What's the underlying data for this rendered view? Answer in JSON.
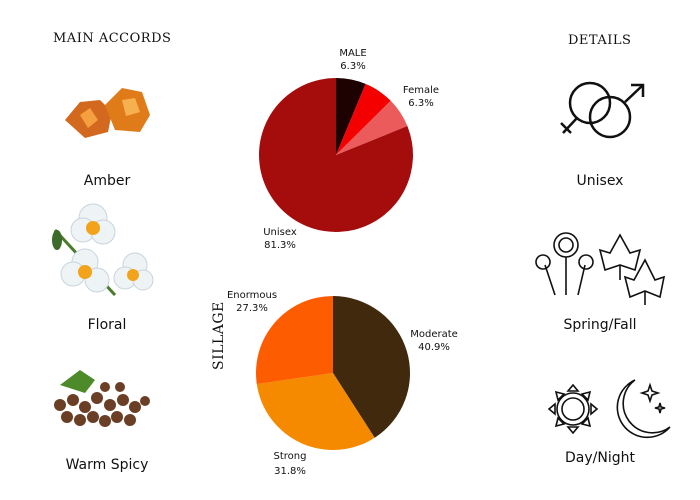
{
  "left": {
    "heading": "MAIN ACCORDS",
    "accords": [
      {
        "label": "Amber",
        "icon": "amber-image"
      },
      {
        "label": "Floral",
        "icon": "narcissus-flower-image"
      },
      {
        "label": "Warm Spicy",
        "icon": "allspice-image"
      }
    ]
  },
  "right": {
    "heading": "DETAILS",
    "items": [
      {
        "label": "Unisex",
        "icon": "gender-symbols-icon"
      },
      {
        "label": "Spring/Fall",
        "icon": "flowers-leaves-icon"
      },
      {
        "label": "Day/Night",
        "icon": "sun-moon-icon"
      }
    ]
  },
  "chart_data": [
    {
      "type": "pie",
      "start": "top",
      "direction": "clockwise",
      "slices": [
        {
          "label": "MALE",
          "value": 6.3,
          "value_label": "6.3%",
          "color": "#1e0202"
        },
        {
          "label": "",
          "value": 6.3,
          "value_label": "",
          "color": "#f40000"
        },
        {
          "label": "Female",
          "value": 6.3,
          "value_label": "6.3%",
          "color": "#ec5b5b"
        },
        {
          "label": "Unisex",
          "value": 81.3,
          "value_label": "81.3%",
          "color": "#a50c0c"
        }
      ]
    },
    {
      "type": "pie",
      "title": "SILLAGE",
      "start": "top",
      "direction": "clockwise",
      "slices": [
        {
          "label": "Moderate",
          "value": 40.9,
          "value_label": "40.9%",
          "color": "#40290d"
        },
        {
          "label": "Strong",
          "value": 31.8,
          "value_label": "31.8%",
          "color": "#f58a00"
        },
        {
          "label": "Enormous",
          "value": 27.3,
          "value_label": "27.3%",
          "color": "#fe5c00"
        }
      ]
    }
  ]
}
